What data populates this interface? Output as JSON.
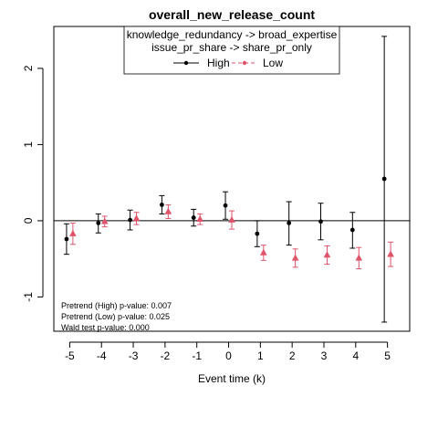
{
  "chart_data": {
    "type": "scatter",
    "title": "overall_new_release_count",
    "xlabel": "Event time (k)",
    "ylabel": "",
    "xlim": [
      -5.5,
      5.7
    ],
    "ylim": [
      -1.45,
      2.55
    ],
    "x_ticks": [
      "-5",
      "-4",
      "-3",
      "-2",
      "-1",
      "0",
      "1",
      "2",
      "3",
      "4",
      "5"
    ],
    "y_ticks": [
      "-1",
      "0",
      "1",
      "2"
    ],
    "reference_line_y": 0,
    "legend": {
      "placement": "top",
      "header_lines": [
        "knowledge_redundancy -> broad_expertise",
        "issue_pr_share -> share_pr_only"
      ]
    },
    "series": [
      {
        "name": "High",
        "color": "#000000",
        "marker": "circle",
        "x": [
          -5,
          -4,
          -3,
          -2,
          -1,
          0,
          1,
          2,
          3,
          4,
          5
        ],
        "y": [
          -0.24,
          -0.03,
          0.01,
          0.21,
          0.04,
          0.2,
          -0.17,
          -0.03,
          -0.01,
          -0.12,
          0.55
        ],
        "lower": [
          -0.44,
          -0.16,
          -0.12,
          0.09,
          -0.07,
          0.02,
          -0.34,
          -0.32,
          -0.25,
          -0.36,
          -1.33
        ],
        "upper": [
          -0.04,
          0.09,
          0.14,
          0.33,
          0.15,
          0.38,
          0.0,
          0.25,
          0.23,
          0.11,
          2.42
        ]
      },
      {
        "name": "Low",
        "color": "#df536b",
        "marker": "triangle",
        "x": [
          -5,
          -4,
          -3,
          -2,
          -1,
          0,
          1,
          2,
          3,
          4,
          5
        ],
        "y": [
          -0.17,
          -0.01,
          0.03,
          0.12,
          0.02,
          0.01,
          -0.42,
          -0.49,
          -0.45,
          -0.49,
          -0.44
        ],
        "lower": [
          -0.31,
          -0.08,
          -0.05,
          0.03,
          -0.05,
          -0.11,
          -0.52,
          -0.61,
          -0.57,
          -0.63,
          -0.6
        ],
        "upper": [
          -0.03,
          0.06,
          0.11,
          0.21,
          0.09,
          0.13,
          -0.32,
          -0.37,
          -0.33,
          -0.35,
          -0.28
        ]
      }
    ],
    "annotations": [
      "Pretrend (High) p-value: 0.007",
      "Pretrend (Low) p-value: 0.025",
      "Wald test p-value: 0.000"
    ]
  }
}
